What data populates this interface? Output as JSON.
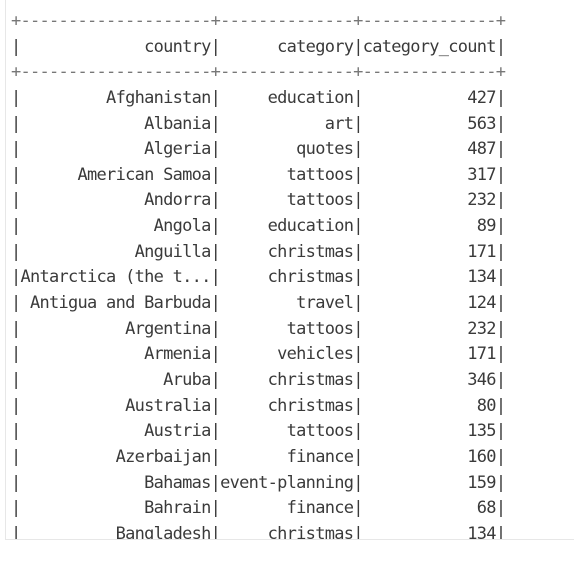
{
  "output": {
    "separator": "+--------------------+--------------+--------------+",
    "header": {
      "col1": "country",
      "col2": "category",
      "col3": "category_count"
    },
    "rows": [
      {
        "country": "Afghanistan",
        "category": "education",
        "count": "427"
      },
      {
        "country": "Albania",
        "category": "art",
        "count": "563"
      },
      {
        "country": "Algeria",
        "category": "quotes",
        "count": "487"
      },
      {
        "country": "American Samoa",
        "category": "tattoos",
        "count": "317"
      },
      {
        "country": "Andorra",
        "category": "tattoos",
        "count": "232"
      },
      {
        "country": "Angola",
        "category": "education",
        "count": "89"
      },
      {
        "country": "Anguilla",
        "category": "christmas",
        "count": "171"
      },
      {
        "country": "Antarctica (the t...",
        "category": "christmas",
        "count": "134"
      },
      {
        "country": "Antigua and Barbuda",
        "category": "travel",
        "count": "124"
      },
      {
        "country": "Argentina",
        "category": "tattoos",
        "count": "232"
      },
      {
        "country": "Armenia",
        "category": "vehicles",
        "count": "171"
      },
      {
        "country": "Aruba",
        "category": "christmas",
        "count": "346"
      },
      {
        "country": "Australia",
        "category": "christmas",
        "count": "80"
      },
      {
        "country": "Austria",
        "category": "tattoos",
        "count": "135"
      },
      {
        "country": "Azerbaijan",
        "category": "finance",
        "count": "160"
      },
      {
        "country": "Bahamas",
        "category": "event-planning",
        "count": "159"
      },
      {
        "country": "Bahrain",
        "category": "finance",
        "count": "68"
      },
      {
        "country": "Bangladesh",
        "category": "christmas",
        "count": "134"
      }
    ]
  }
}
